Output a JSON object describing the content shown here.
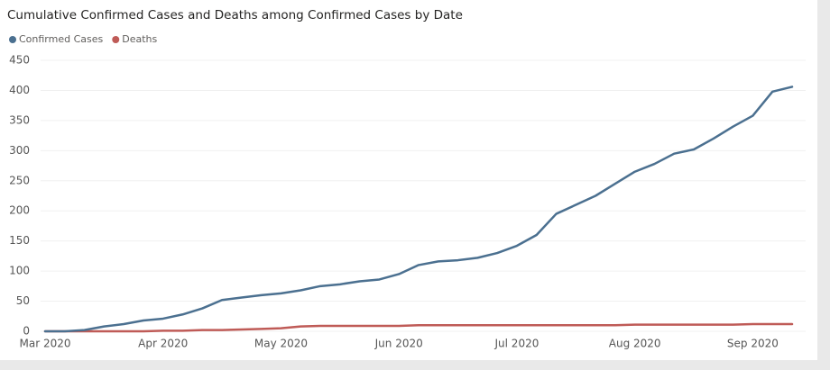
{
  "chart_data": {
    "type": "line",
    "title": "Cumulative Confirmed Cases and Deaths among Confirmed Cases by Date",
    "categories": [
      "Mar 2020",
      null,
      null,
      null,
      null,
      null,
      "Apr 2020",
      null,
      null,
      null,
      null,
      null,
      "May 2020",
      null,
      null,
      null,
      null,
      null,
      "Jun 2020",
      null,
      null,
      null,
      null,
      null,
      "Jul 2020",
      null,
      null,
      null,
      null,
      null,
      "Aug 2020",
      null,
      null,
      null,
      null,
      null,
      "Sep 2020",
      null,
      null
    ],
    "series": [
      {
        "name": "Confirmed Cases",
        "color": "#4b7090",
        "values": [
          0,
          0,
          2,
          8,
          12,
          18,
          21,
          28,
          38,
          52,
          56,
          60,
          63,
          68,
          75,
          78,
          83,
          86,
          95,
          110,
          116,
          118,
          122,
          130,
          142,
          160,
          195,
          210,
          225,
          245,
          265,
          278,
          295,
          302,
          320,
          340,
          358,
          398,
          406
        ]
      },
      {
        "name": "Deaths",
        "color": "#bf5b57",
        "values": [
          0,
          0,
          0,
          0,
          0,
          0,
          1,
          1,
          2,
          2,
          3,
          4,
          5,
          8,
          9,
          9,
          9,
          9,
          9,
          10,
          10,
          10,
          10,
          10,
          10,
          10,
          10,
          10,
          10,
          10,
          11,
          11,
          11,
          11,
          11,
          11,
          12,
          12,
          12
        ]
      }
    ],
    "ylim": [
      0,
      450
    ],
    "yticks": [
      0,
      50,
      100,
      150,
      200,
      250,
      300,
      350,
      400,
      450
    ],
    "grid": true,
    "legend": "top-left"
  }
}
